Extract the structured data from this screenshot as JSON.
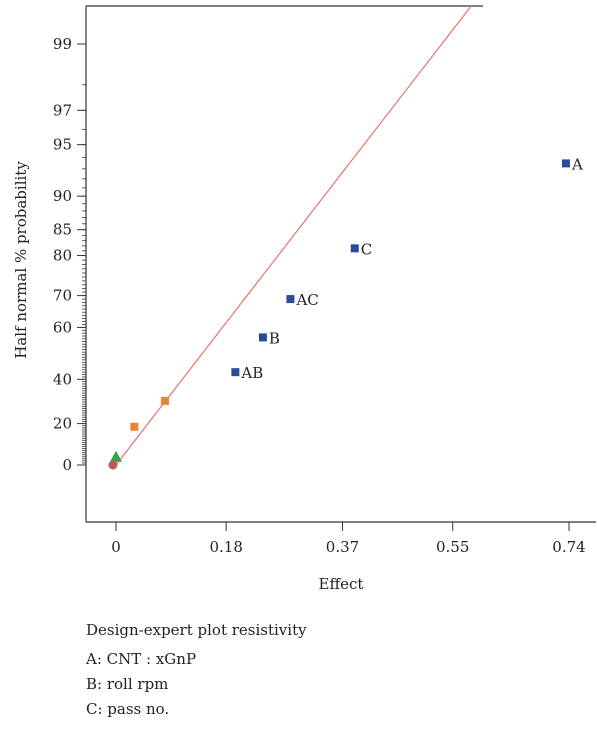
{
  "chart_data": {
    "type": "scatter",
    "title": "",
    "xlabel": "Effect",
    "ylabel": "Half normal % probability",
    "x_ticks": [
      "0",
      "0.18",
      "0.37",
      "0.55",
      "0.74"
    ],
    "x_tick_values": [
      0,
      0.18,
      0.37,
      0.55,
      0.74
    ],
    "y_ticks": [
      "0",
      "20",
      "40",
      "60",
      "70",
      "80",
      "85",
      "90",
      "95",
      "97",
      "99"
    ],
    "y_tick_values": [
      0,
      20,
      40,
      60,
      70,
      80,
      85,
      90,
      95,
      97,
      99
    ],
    "xlim": [
      -0.05,
      0.76
    ],
    "y_scale": "half-normal probability",
    "reference_line": {
      "from": [
        0,
        0
      ],
      "through_prob": 99.5,
      "through_effect": 0.58,
      "color": "#e8736c"
    },
    "series": [
      {
        "points": [
          {
            "label": "A",
            "x": 0.735,
            "y": 93.5,
            "shape": "square",
            "color": "#2b4a9a"
          },
          {
            "label": "C",
            "x": 0.39,
            "y": 81.5,
            "shape": "square",
            "color": "#2b4a9a"
          },
          {
            "label": "AC",
            "x": 0.285,
            "y": 69,
            "shape": "square",
            "color": "#2b4a9a"
          },
          {
            "label": "B",
            "x": 0.24,
            "y": 56.5,
            "shape": "square",
            "color": "#2b4a9a"
          },
          {
            "label": "AB",
            "x": 0.195,
            "y": 43,
            "shape": "square",
            "color": "#2b4a9a"
          },
          {
            "label": "",
            "x": 0.08,
            "y": 30.5,
            "shape": "square",
            "color": "#e9862f"
          },
          {
            "label": "",
            "x": 0.03,
            "y": 18.5,
            "shape": "square",
            "color": "#e9862f"
          },
          {
            "label": "",
            "x": 0.0,
            "y": 4,
            "shape": "triangle",
            "color": "#3aa34a"
          },
          {
            "label": "",
            "x": -0.005,
            "y": 0,
            "shape": "circle",
            "color": "#c0585a"
          }
        ]
      }
    ]
  },
  "caption": {
    "title": "Design-expert plot resistivity",
    "factors": [
      "A: CNT : xGnP",
      "B: roll rpm",
      "C: pass no."
    ]
  }
}
